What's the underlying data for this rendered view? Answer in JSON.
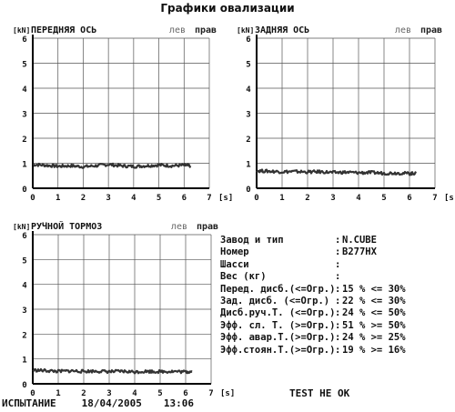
{
  "page_title": "Графики овализации",
  "chart_data": [
    {
      "type": "line",
      "title": "ПЕРЕДНЯЯ ОСЬ",
      "ylabel": "[kN]",
      "xlabel": "[s]",
      "legend": [
        "лев",
        "прав"
      ],
      "xlim": [
        0,
        7
      ],
      "ylim": [
        0,
        6
      ],
      "x_ticks": [
        "0",
        "1",
        "2",
        "3",
        "4",
        "5",
        "6",
        "7"
      ],
      "y_ticks": [
        "0",
        "1",
        "2",
        "3",
        "4",
        "5",
        "6"
      ],
      "series": [
        {
          "x": [
            0,
            0.5,
            1,
            1.5,
            2,
            2.5,
            3,
            3.5,
            4,
            4.5,
            5,
            5.5,
            6,
            6.25
          ],
          "values": [
            0.95,
            0.92,
            0.88,
            0.9,
            0.86,
            0.9,
            0.95,
            0.9,
            0.87,
            0.9,
            0.93,
            0.9,
            0.92,
            0.9
          ]
        }
      ]
    },
    {
      "type": "line",
      "title": "ЗАДНЯЯ ОСЬ",
      "ylabel": "[kN]",
      "xlabel": "[s]",
      "legend": [
        "лев",
        "прав"
      ],
      "xlim": [
        0,
        7
      ],
      "ylim": [
        0,
        6
      ],
      "x_ticks": [
        "0",
        "1",
        "2",
        "3",
        "4",
        "5",
        "6",
        "7"
      ],
      "y_ticks": [
        "0",
        "1",
        "2",
        "3",
        "4",
        "5",
        "6"
      ],
      "series": [
        {
          "x": [
            0,
            0.5,
            1,
            1.5,
            2,
            2.5,
            3,
            3.5,
            4,
            4.5,
            5,
            5.5,
            6,
            6.25
          ],
          "values": [
            0.7,
            0.68,
            0.66,
            0.67,
            0.65,
            0.66,
            0.63,
            0.64,
            0.62,
            0.63,
            0.6,
            0.61,
            0.59,
            0.6
          ]
        }
      ]
    },
    {
      "type": "line",
      "title": "РУЧНОЙ ТОРМОЗ",
      "ylabel": "[kN]",
      "xlabel": "[s]",
      "legend": [
        "лев",
        "прав"
      ],
      "xlim": [
        0,
        7
      ],
      "ylim": [
        0,
        6
      ],
      "x_ticks": [
        "0",
        "1",
        "2",
        "3",
        "4",
        "5",
        "6",
        "7"
      ],
      "y_ticks": [
        "0",
        "1",
        "2",
        "3",
        "4",
        "5",
        "6"
      ],
      "series": [
        {
          "x": [
            0,
            0.5,
            1,
            1.5,
            2,
            2.5,
            3,
            3.5,
            4,
            4.5,
            5,
            5.5,
            6,
            6.25
          ],
          "values": [
            0.55,
            0.53,
            0.5,
            0.52,
            0.5,
            0.51,
            0.49,
            0.5,
            0.48,
            0.5,
            0.49,
            0.5,
            0.48,
            0.49
          ]
        }
      ]
    }
  ],
  "info": [
    {
      "label": "Завод и тип",
      "value": "N.CUBE"
    },
    {
      "label": "Номер",
      "value": "B277HX"
    },
    {
      "label": "Шасси",
      "value": ""
    },
    {
      "label": "Вес (кг)",
      "value": ""
    },
    {
      "label": "Перед. дисб.(<=Огр.)",
      "value": "15 % <= 30%"
    },
    {
      "label": "Зад. дисб.   (<=Огр.)",
      "value": "22 % <= 30%"
    },
    {
      "label": "Дисб.руч.Т. (<=Огр.)",
      "value": "24 % <= 50%"
    },
    {
      "label": "Эфф. сл. Т.  (>=Огр.)",
      "value": "51 % >= 50%"
    },
    {
      "label": "Эфф. авар.Т.(>=Огр.)",
      "value": "24 % >= 25%"
    },
    {
      "label": "Эфф.стоян.Т.(>=Огр.)",
      "value": "19 % >= 16%"
    }
  ],
  "status": "TEST НЕ ОК",
  "footer": {
    "label": "ИСПЫТАНИЕ",
    "date": "18/04/2005",
    "time": "13:06"
  },
  "colors": {
    "grid": "#555555",
    "axis": "#000000",
    "trace": "#333333",
    "legend": "#666666"
  }
}
